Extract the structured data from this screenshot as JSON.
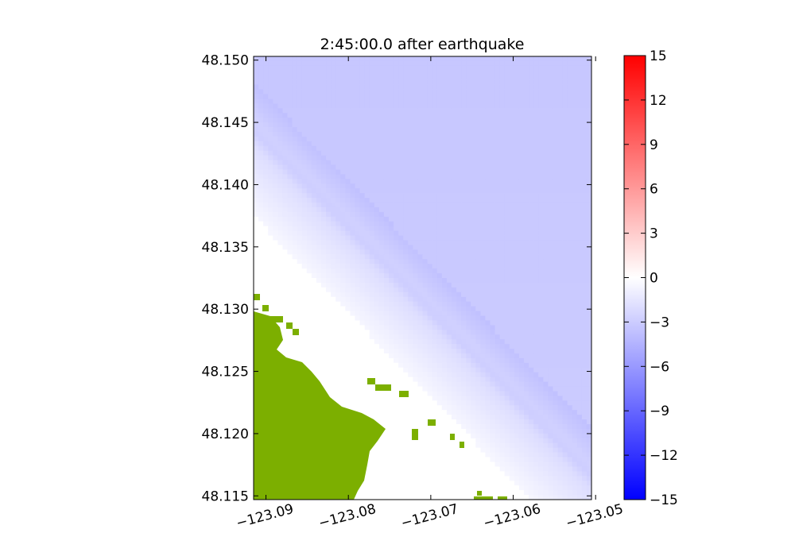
{
  "chart_data": {
    "type": "heatmap",
    "title": "2:45:00.0 after earthquake",
    "xlabel": "",
    "ylabel": "",
    "xlim": [
      -123.0915,
      -123.0505
    ],
    "ylim": [
      48.1147,
      48.1503
    ],
    "x_ticks": [
      -123.09,
      -123.08,
      -123.07,
      -123.06,
      -123.05
    ],
    "x_tick_labels": [
      "−123.09",
      "−123.08",
      "−123.07",
      "−123.06",
      "−123.05"
    ],
    "y_ticks": [
      48.15,
      48.145,
      48.14,
      48.135,
      48.13,
      48.125,
      48.12,
      48.115
    ],
    "y_tick_labels": [
      "48.150",
      "48.145",
      "48.140",
      "48.135",
      "48.130",
      "48.125",
      "48.120",
      "48.115"
    ],
    "colorbar": {
      "min": -15,
      "max": 15,
      "ticks": [
        15,
        12,
        9,
        6,
        3,
        0,
        -3,
        -6,
        -9,
        -12,
        -15
      ],
      "tick_labels": [
        "15",
        "12",
        "9",
        "6",
        "3",
        "0",
        "−3",
        "−6",
        "−9",
        "−12",
        "−15"
      ],
      "colormap": "bwr",
      "colors": {
        "low": "#0000ff",
        "mid": "#ffffff",
        "high": "#ff0000"
      }
    },
    "land_color": "#7caf00",
    "field_description_values": {
      "offshore_level": -3,
      "trough_level": -4.5,
      "nearshore_level": -0.5
    }
  }
}
